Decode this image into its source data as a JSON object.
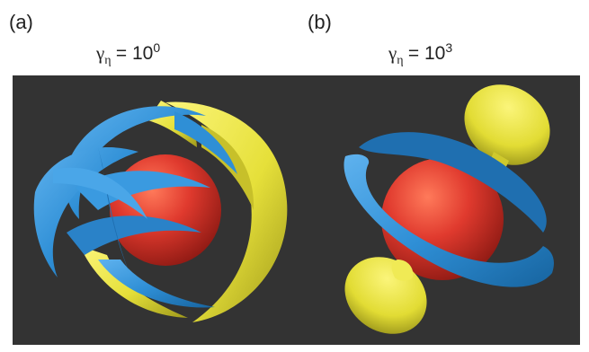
{
  "panels": [
    {
      "label": "(a)",
      "gamma_symbol": "γ",
      "gamma_subscript": "η",
      "gamma_equals": "= 10",
      "gamma_exponent": "0"
    },
    {
      "label": "(b)",
      "gamma_symbol": "γ",
      "gamma_subscript": "η",
      "gamma_equals": "= 10",
      "gamma_exponent": "3"
    }
  ],
  "colors": {
    "background": "#333333",
    "sphere": "#e03a2e",
    "blue_surface": "#2f8fd6",
    "yellow_surface": "#e6e03a"
  }
}
